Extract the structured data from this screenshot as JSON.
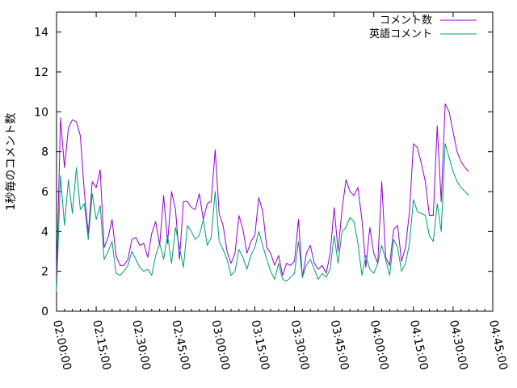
{
  "chart_data": {
    "type": "line",
    "title": "",
    "xlabel": "",
    "ylabel": "1秒毎のコメント数",
    "xlim": [
      "02:00:00",
      "04:45:00"
    ],
    "ylim": [
      0,
      15
    ],
    "x_tick_labels": [
      "02:00:00",
      "02:15:00",
      "02:30:00",
      "02:45:00",
      "03:00:00",
      "03:15:00",
      "03:30:00",
      "03:45:00",
      "04:00:00",
      "04:15:00",
      "04:30:00",
      "04:45:00"
    ],
    "y_tick_labels": [
      "0",
      "2",
      "4",
      "6",
      "8",
      "10",
      "12",
      "14"
    ],
    "y_ticks": [
      0,
      2,
      4,
      6,
      8,
      10,
      12,
      14
    ],
    "grid": false,
    "legend_position": "top-right",
    "x": [
      "02:00:00",
      "02:01:30",
      "02:03:00",
      "02:04:30",
      "02:06:00",
      "02:07:30",
      "02:09:00",
      "02:10:30",
      "02:12:00",
      "02:13:30",
      "02:15:00",
      "02:16:30",
      "02:18:00",
      "02:19:30",
      "02:21:00",
      "02:22:30",
      "02:24:00",
      "02:25:30",
      "02:27:00",
      "02:28:30",
      "02:30:00",
      "02:31:30",
      "02:33:00",
      "02:34:30",
      "02:36:00",
      "02:37:30",
      "02:39:00",
      "02:40:30",
      "02:42:00",
      "02:43:30",
      "02:45:00",
      "02:46:30",
      "02:48:00",
      "02:49:30",
      "02:51:00",
      "02:52:30",
      "02:54:00",
      "02:55:30",
      "02:57:00",
      "02:58:30",
      "03:00:00",
      "03:01:30",
      "03:03:00",
      "03:04:30",
      "03:06:00",
      "03:07:30",
      "03:09:00",
      "03:10:30",
      "03:12:00",
      "03:13:30",
      "03:15:00",
      "03:16:30",
      "03:18:00",
      "03:19:30",
      "03:21:00",
      "03:22:30",
      "03:24:00",
      "03:25:30",
      "03:27:00",
      "03:28:30",
      "03:30:00",
      "03:31:30",
      "03:33:00",
      "03:34:30",
      "03:36:00",
      "03:37:30",
      "03:39:00",
      "03:40:30",
      "03:42:00",
      "03:43:30",
      "03:45:00",
      "03:46:30",
      "03:48:00",
      "03:49:30",
      "03:51:00",
      "03:52:30",
      "03:54:00",
      "03:55:30",
      "03:57:00",
      "03:58:30",
      "04:00:00",
      "04:01:30",
      "04:03:00",
      "04:04:30",
      "04:06:00",
      "04:07:30",
      "04:09:00",
      "04:10:30",
      "04:12:00",
      "04:13:30",
      "04:15:00",
      "04:16:30",
      "04:18:00",
      "04:19:30",
      "04:21:00",
      "04:22:30",
      "04:24:00",
      "04:25:30",
      "04:27:00",
      "04:28:30",
      "04:30:00",
      "04:31:30",
      "04:33:00",
      "04:34:30",
      "04:36:00"
    ],
    "series": [
      {
        "name": "コメント数",
        "color": "#9400d3",
        "values": [
          1.6,
          9.7,
          7.2,
          9.2,
          9.6,
          9.5,
          8.8,
          6.0,
          3.9,
          6.5,
          6.2,
          7.1,
          3.2,
          3.7,
          4.6,
          2.8,
          2.3,
          2.3,
          2.6,
          3.6,
          3.7,
          3.3,
          3.4,
          2.7,
          3.9,
          4.5,
          3.3,
          5.8,
          3.4,
          6.0,
          5.1,
          2.6,
          5.5,
          5.5,
          5.2,
          5.1,
          5.9,
          4.6,
          5.4,
          5.5,
          8.1,
          4.9,
          4.3,
          3.0,
          2.4,
          2.9,
          4.8,
          4.1,
          2.9,
          3.5,
          3.8,
          5.7,
          5.0,
          3.2,
          2.9,
          2.3,
          2.8,
          1.8,
          2.4,
          2.3,
          2.5,
          4.6,
          1.7,
          2.9,
          3.3,
          2.4,
          2.1,
          2.3,
          1.9,
          2.9,
          5.2,
          3.0,
          5.1,
          6.6,
          6.0,
          5.8,
          6.2,
          4.6,
          2.2,
          4.2,
          2.9,
          2.4,
          6.5,
          2.7,
          2.3,
          4.1,
          4.3,
          2.5,
          3.2,
          5.0,
          8.4,
          8.2,
          7.4,
          6.5,
          4.8,
          4.8,
          9.3,
          5.5,
          10.4,
          10.0,
          9.0,
          8.0,
          7.5,
          7.2,
          7.0
        ]
      },
      {
        "name": "英語コメント",
        "color": "#009e73",
        "values": [
          1.0,
          6.8,
          4.3,
          6.6,
          4.9,
          7.2,
          5.1,
          5.4,
          3.6,
          5.9,
          4.6,
          5.3,
          2.6,
          3.0,
          3.5,
          1.9,
          1.8,
          2.0,
          2.3,
          3.0,
          2.6,
          2.2,
          2.0,
          2.1,
          1.8,
          2.8,
          3.4,
          2.6,
          3.8,
          2.4,
          4.2,
          3.2,
          2.2,
          4.3,
          4.0,
          3.6,
          3.8,
          4.6,
          3.3,
          3.7,
          6.0,
          3.5,
          3.1,
          2.6,
          1.8,
          2.0,
          3.1,
          2.7,
          2.1,
          2.8,
          3.2,
          4.0,
          3.3,
          2.6,
          2.0,
          1.6,
          2.4,
          1.6,
          1.5,
          1.7,
          1.9,
          3.5,
          1.7,
          2.3,
          2.6,
          2.1,
          1.6,
          1.9,
          1.7,
          2.1,
          3.8,
          2.4,
          4.0,
          4.2,
          4.7,
          4.5,
          3.4,
          1.8,
          2.8,
          2.1,
          1.9,
          2.4,
          3.3,
          2.6,
          1.8,
          3.6,
          3.2,
          2.0,
          2.4,
          3.4,
          5.6,
          5.0,
          4.9,
          4.8,
          3.8,
          3.5,
          5.4,
          4.0,
          8.4,
          7.7,
          7.0,
          6.5,
          6.2,
          6.0,
          5.8
        ]
      }
    ]
  }
}
